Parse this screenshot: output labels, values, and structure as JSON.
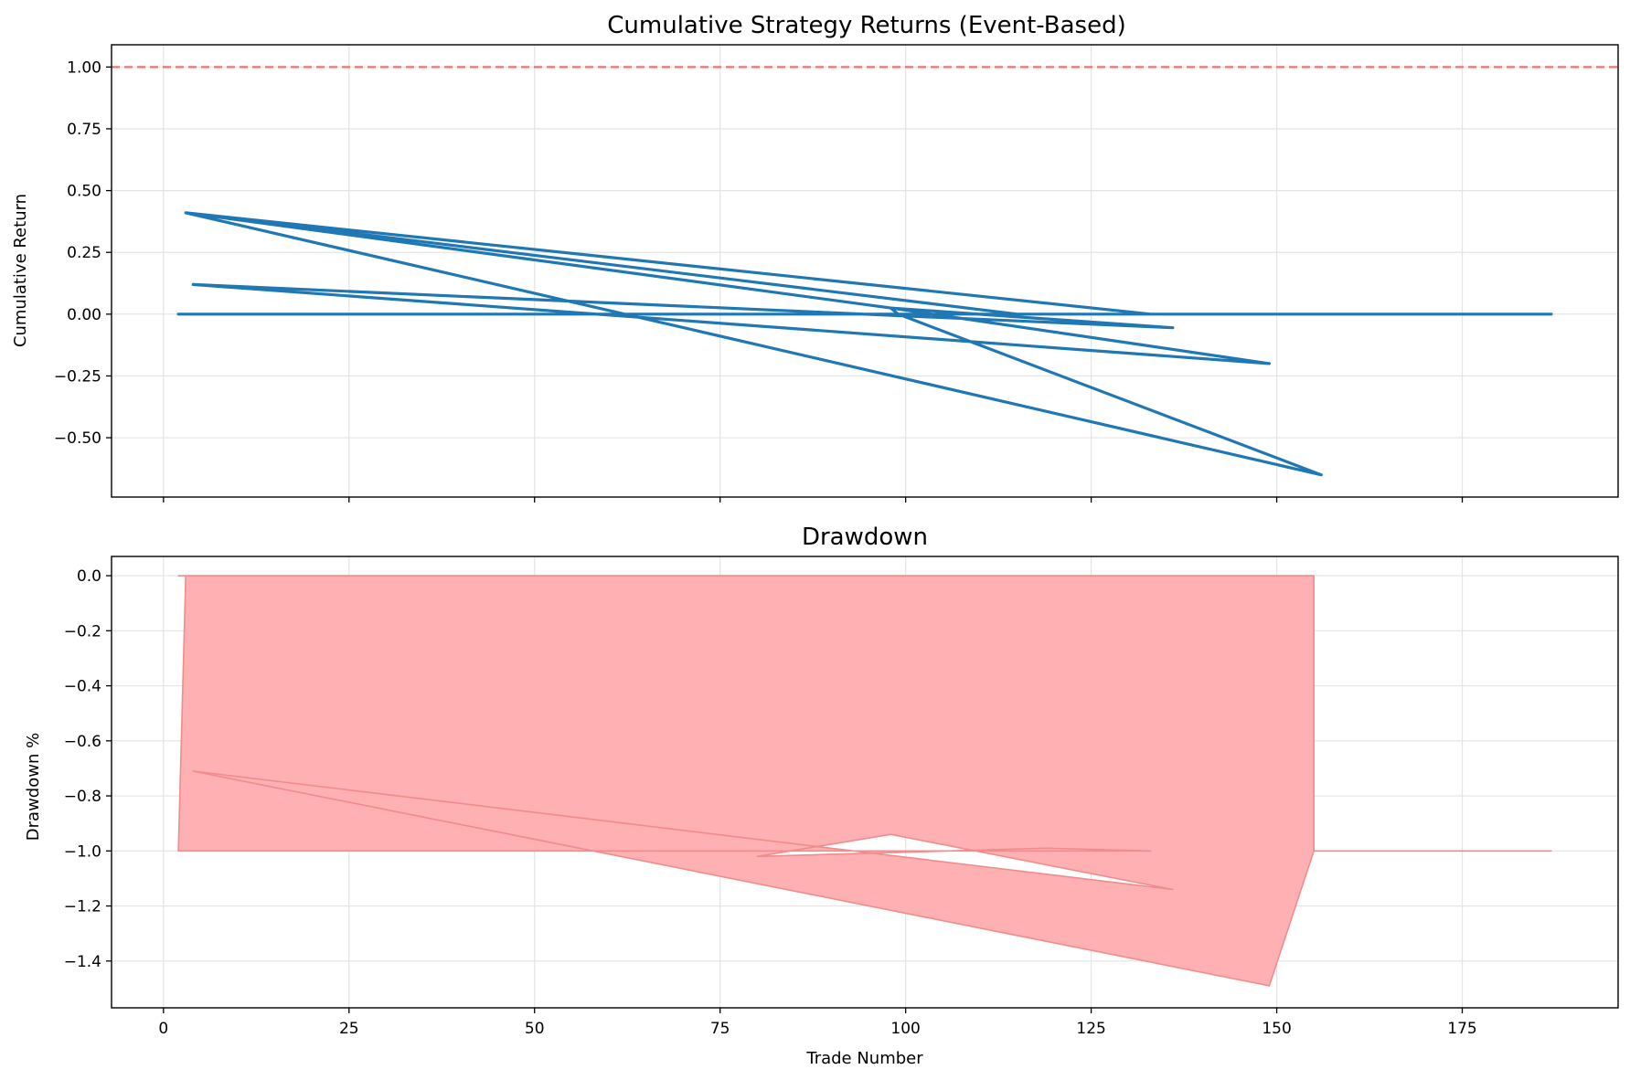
{
  "colors": {
    "line": "#1f77b4",
    "reference": "#f07070",
    "drawdown_fill": "#ffb0b2",
    "drawdown_edge": "#f08c8c",
    "grid": "#e4e4e4"
  },
  "chart_data": [
    {
      "type": "line",
      "title": "Cumulative Strategy Returns (Event-Based)",
      "xlabel": "",
      "ylabel": "Cumulative Return",
      "xlim": [
        -7,
        196
      ],
      "ylim": [
        -0.74,
        1.09
      ],
      "xticks": [
        0,
        25,
        50,
        75,
        100,
        125,
        150,
        175
      ],
      "xtick_labels": [],
      "yticks": [
        -0.5,
        -0.25,
        0.0,
        0.25,
        0.5,
        0.75,
        1.0
      ],
      "ytick_labels": [
        "−0.50",
        "−0.25",
        "0.00",
        "0.25",
        "0.50",
        "0.75",
        "1.00"
      ],
      "grid": true,
      "reference_line": {
        "y": 1.0,
        "style": "dashed"
      },
      "series": [
        {
          "x": [
            2,
            80,
            133,
            3,
            98,
            149,
            4,
            136,
            98,
            99,
            156,
            3,
            115,
            187
          ],
          "y": [
            0.0,
            0.0,
            0.0,
            0.41,
            0.025,
            -0.2,
            0.12,
            -0.055,
            0.025,
            0.0,
            -0.65,
            0.41,
            0.0,
            0.0
          ]
        }
      ]
    },
    {
      "type": "area",
      "title": "Drawdown",
      "xlabel": "Trade Number",
      "ylabel": "Drawdown %",
      "xlim": [
        -7,
        196
      ],
      "ylim": [
        -1.57,
        0.07
      ],
      "xticks": [
        0,
        25,
        50,
        75,
        100,
        125,
        150,
        175
      ],
      "xtick_labels": [
        "0",
        "25",
        "50",
        "75",
        "100",
        "125",
        "150",
        "175"
      ],
      "yticks": [
        -1.4,
        -1.2,
        -1.0,
        -0.8,
        -0.6,
        -0.4,
        -0.2,
        0.0
      ],
      "ytick_labels": [
        "−1.4",
        "−1.2",
        "−1.0",
        "−0.8",
        "−0.6",
        "−0.4",
        "−0.2",
        "0.0"
      ],
      "grid": true,
      "series": [
        {
          "x": [
            2,
            155,
            155,
            187,
            155,
            149,
            4,
            136,
            98,
            80,
            119,
            133,
            2,
            3
          ],
          "y": [
            0.0,
            0.0,
            -1.0,
            -1.0,
            -1.0,
            -1.49,
            -0.71,
            -1.14,
            -0.94,
            -1.02,
            -0.99,
            -1.0,
            -1.0,
            0.0
          ]
        }
      ]
    }
  ]
}
